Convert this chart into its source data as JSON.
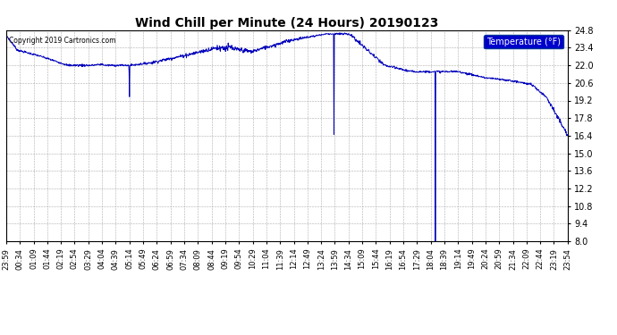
{
  "title": "Wind Chill per Minute (24 Hours) 20190123",
  "copyright_text": "Copyright 2019 Cartronics.com",
  "legend_label": "Temperature (°F)",
  "line_color": "#0000bb",
  "background_color": "#ffffff",
  "grid_color": "#999999",
  "ylim": [
    8.0,
    24.8
  ],
  "yticks": [
    8.0,
    9.4,
    10.8,
    12.2,
    13.6,
    15.0,
    16.4,
    17.8,
    19.2,
    20.6,
    22.0,
    23.4,
    24.8
  ],
  "xtick_labels": [
    "23:59",
    "00:34",
    "01:09",
    "01:44",
    "02:19",
    "02:54",
    "03:29",
    "04:04",
    "04:39",
    "05:14",
    "05:49",
    "06:24",
    "06:59",
    "07:34",
    "08:09",
    "08:44",
    "09:19",
    "09:54",
    "10:29",
    "11:04",
    "11:39",
    "12:14",
    "12:49",
    "13:24",
    "13:59",
    "14:34",
    "15:09",
    "15:44",
    "16:19",
    "16:54",
    "17:29",
    "18:04",
    "18:39",
    "19:14",
    "19:49",
    "20:24",
    "20:59",
    "21:34",
    "22:09",
    "22:44",
    "23:19",
    "23:54"
  ],
  "n_points": 1440
}
